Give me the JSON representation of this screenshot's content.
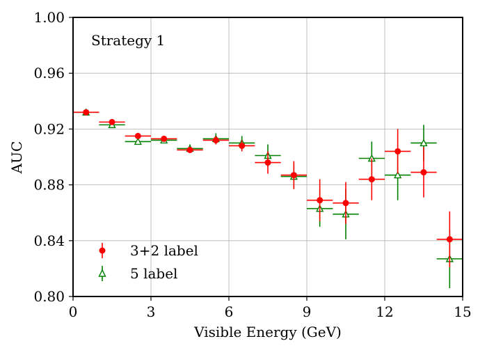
{
  "chart_data": {
    "type": "scatter",
    "title": "",
    "annotation": "Strategy 1",
    "xlabel": "Visible Energy (GeV)",
    "ylabel": "AUC",
    "xlim": [
      0,
      15
    ],
    "ylim": [
      0.8,
      1.0
    ],
    "xticks": [
      0,
      3,
      6,
      9,
      12,
      15
    ],
    "xtick_labels": [
      "0",
      "3",
      "6",
      "9",
      "12",
      "15"
    ],
    "yticks": [
      0.8,
      0.84,
      0.88,
      0.92,
      0.96,
      1.0
    ],
    "ytick_labels": [
      "0.80",
      "0.84",
      "0.88",
      "0.92",
      "0.96",
      "1.00"
    ],
    "grid": true,
    "legend_position": "bottom-left",
    "x_bin_halfwidth": 0.5,
    "series": [
      {
        "name": "3+2 label",
        "marker": "circle",
        "color": "#ff0000",
        "x": [
          0.5,
          1.5,
          2.5,
          3.5,
          4.5,
          5.5,
          6.5,
          7.5,
          8.5,
          9.5,
          10.5,
          11.5,
          12.5,
          13.5,
          14.5
        ],
        "y": [
          0.932,
          0.925,
          0.915,
          0.913,
          0.905,
          0.912,
          0.908,
          0.896,
          0.887,
          0.869,
          0.867,
          0.884,
          0.904,
          0.889,
          0.841
        ],
        "yerr": [
          0.001,
          0.001,
          0.002,
          0.002,
          0.002,
          0.003,
          0.004,
          0.008,
          0.01,
          0.015,
          0.015,
          0.015,
          0.016,
          0.018,
          0.02
        ]
      },
      {
        "name": "5 label",
        "marker": "triangle",
        "color": "#008000",
        "x": [
          0.5,
          1.5,
          2.5,
          3.5,
          4.5,
          5.5,
          6.5,
          7.5,
          8.5,
          9.5,
          10.5,
          11.5,
          12.5,
          13.5,
          14.5
        ],
        "y": [
          0.932,
          0.923,
          0.911,
          0.912,
          0.906,
          0.913,
          0.91,
          0.901,
          0.886,
          0.863,
          0.859,
          0.899,
          0.887,
          0.91,
          0.827
        ],
        "yerr": [
          0.001,
          0.001,
          0.002,
          0.002,
          0.003,
          0.004,
          0.005,
          0.008,
          0.009,
          0.013,
          0.018,
          0.012,
          0.018,
          0.013,
          0.021
        ]
      }
    ]
  }
}
